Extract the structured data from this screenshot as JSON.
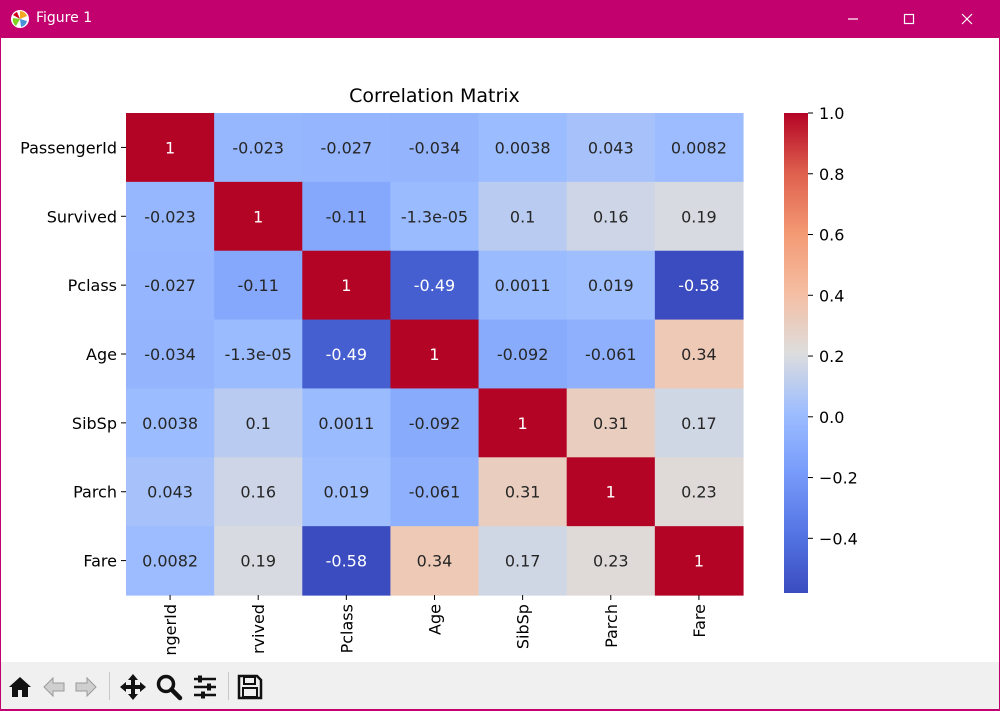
{
  "window": {
    "title": "Figure 1"
  },
  "toolbar": {
    "buttons": [
      {
        "name": "home-icon"
      },
      {
        "name": "back-icon"
      },
      {
        "name": "forward-icon"
      },
      {
        "name": "pan-icon"
      },
      {
        "name": "zoom-icon"
      },
      {
        "name": "configure-icon"
      },
      {
        "name": "save-icon"
      }
    ]
  },
  "colors": {
    "titlebar": "#c2006e",
    "cmap_low": "#3b4cc0",
    "cmap_mid": "#dddddd",
    "cmap_high": "#b40426"
  },
  "chart_data": {
    "type": "heatmap",
    "title": "Correlation Matrix",
    "colormap": "coolwarm",
    "rows": [
      "PassengerId",
      "Survived",
      "Pclass",
      "Age",
      "SibSp",
      "Parch",
      "Fare"
    ],
    "columns": [
      "PassengerId",
      "Survived",
      "Pclass",
      "Age",
      "SibSp",
      "Parch",
      "Fare"
    ],
    "column_tick_labels_visible": [
      "ngerId",
      "rvived",
      "Pclass",
      "Age",
      "SibSp",
      "Parch",
      "Fare"
    ],
    "values": [
      [
        1,
        -0.023,
        -0.027,
        -0.034,
        0.0038,
        0.043,
        0.0082
      ],
      [
        -0.023,
        1,
        -0.11,
        -1.3e-05,
        0.1,
        0.16,
        0.19
      ],
      [
        -0.027,
        -0.11,
        1,
        -0.49,
        0.0011,
        0.019,
        -0.58
      ],
      [
        -0.034,
        -1.3e-05,
        -0.49,
        1,
        -0.092,
        -0.061,
        0.34
      ],
      [
        0.0038,
        0.1,
        0.0011,
        -0.092,
        1,
        0.31,
        0.17
      ],
      [
        0.043,
        0.16,
        0.019,
        -0.061,
        0.31,
        1,
        0.23
      ],
      [
        0.0082,
        0.19,
        -0.58,
        0.34,
        0.17,
        0.23,
        1
      ]
    ],
    "annotations": [
      [
        "1",
        "-0.023",
        "-0.027",
        "-0.034",
        "0.0038",
        "0.043",
        "0.0082"
      ],
      [
        "-0.023",
        "1",
        "-0.11",
        "-1.3e-05",
        "0.1",
        "0.16",
        "0.19"
      ],
      [
        "-0.027",
        "-0.11",
        "1",
        "-0.49",
        "0.0011",
        "0.019",
        "-0.58"
      ],
      [
        "-0.034",
        "-1.3e-05",
        "-0.49",
        "1",
        "-0.092",
        "-0.061",
        "0.34"
      ],
      [
        "0.0038",
        "0.1",
        "0.0011",
        "-0.092",
        "1",
        "0.31",
        "0.17"
      ],
      [
        "0.043",
        "0.16",
        "0.019",
        "-0.061",
        "0.31",
        "1",
        "0.23"
      ],
      [
        "0.0082",
        "0.19",
        "-0.58",
        "0.34",
        "0.17",
        "0.23",
        "1"
      ]
    ],
    "vmin": -0.58,
    "vmax": 1.0,
    "colorbar_ticks": [
      {
        "value": 1.0,
        "label": "1.0"
      },
      {
        "value": 0.8,
        "label": "0.8"
      },
      {
        "value": 0.6,
        "label": "0.6"
      },
      {
        "value": 0.4,
        "label": "0.4"
      },
      {
        "value": 0.2,
        "label": "0.2"
      },
      {
        "value": 0.0,
        "label": "0.0"
      },
      {
        "value": -0.2,
        "label": "−0.2"
      },
      {
        "value": -0.4,
        "label": "−0.4"
      }
    ]
  }
}
